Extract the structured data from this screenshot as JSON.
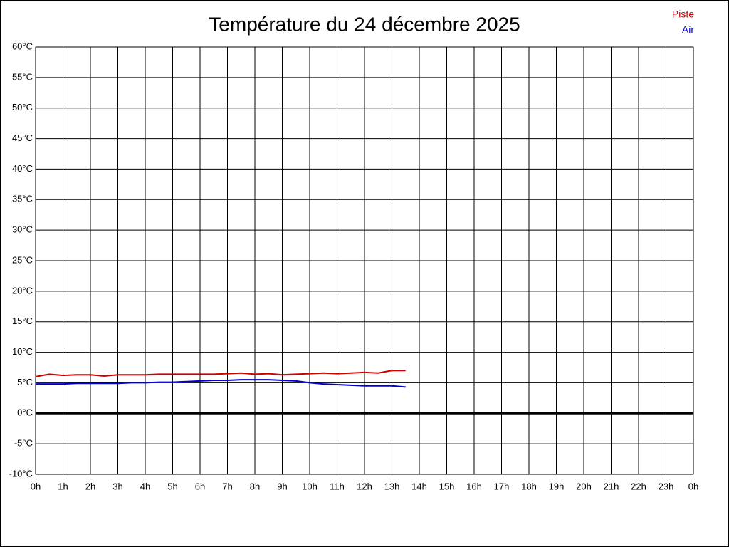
{
  "chart_data": {
    "type": "line",
    "title": "Température du 24 décembre 2025",
    "xlim": [
      0,
      24
    ],
    "xticks": [
      {
        "value": 0,
        "label": "0h"
      },
      {
        "value": 1,
        "label": "1h"
      },
      {
        "value": 2,
        "label": "2h"
      },
      {
        "value": 3,
        "label": "3h"
      },
      {
        "value": 4,
        "label": "4h"
      },
      {
        "value": 5,
        "label": "5h"
      },
      {
        "value": 6,
        "label": "6h"
      },
      {
        "value": 7,
        "label": "7h"
      },
      {
        "value": 8,
        "label": "8h"
      },
      {
        "value": 9,
        "label": "9h"
      },
      {
        "value": 10,
        "label": "10h"
      },
      {
        "value": 11,
        "label": "11h"
      },
      {
        "value": 12,
        "label": "12h"
      },
      {
        "value": 13,
        "label": "13h"
      },
      {
        "value": 14,
        "label": "14h"
      },
      {
        "value": 15,
        "label": "15h"
      },
      {
        "value": 16,
        "label": "16h"
      },
      {
        "value": 17,
        "label": "17h"
      },
      {
        "value": 18,
        "label": "18h"
      },
      {
        "value": 19,
        "label": "19h"
      },
      {
        "value": 20,
        "label": "20h"
      },
      {
        "value": 21,
        "label": "21h"
      },
      {
        "value": 22,
        "label": "22h"
      },
      {
        "value": 23,
        "label": "23h"
      },
      {
        "value": 24,
        "label": "0h"
      }
    ],
    "ylim": [
      -10,
      60
    ],
    "yticks": [
      {
        "value": -10,
        "label": "-10°C"
      },
      {
        "value": -5,
        "label": "-5°C"
      },
      {
        "value": 0,
        "label": "0°C"
      },
      {
        "value": 5,
        "label": "5°C"
      },
      {
        "value": 10,
        "label": "10°C"
      },
      {
        "value": 15,
        "label": "15°C"
      },
      {
        "value": 20,
        "label": "20°C"
      },
      {
        "value": 25,
        "label": "25°C"
      },
      {
        "value": 30,
        "label": "30°C"
      },
      {
        "value": 35,
        "label": "35°C"
      },
      {
        "value": 40,
        "label": "40°C"
      },
      {
        "value": 45,
        "label": "45°C"
      },
      {
        "value": 50,
        "label": "50°C"
      },
      {
        "value": 55,
        "label": "55°C"
      },
      {
        "value": 60,
        "label": "60°C"
      }
    ],
    "grid": true,
    "zero_line": true,
    "legend": "top-right",
    "x": [
      0,
      0.5,
      1,
      1.5,
      2,
      2.5,
      3,
      3.5,
      4,
      4.5,
      5,
      5.5,
      6,
      6.5,
      7,
      7.5,
      8,
      8.5,
      9,
      9.5,
      10,
      10.5,
      11,
      11.5,
      12,
      12.5,
      13,
      13.5
    ],
    "series": [
      {
        "name": "Piste",
        "color": "#cc0000",
        "values": [
          6.0,
          6.4,
          6.2,
          6.3,
          6.3,
          6.1,
          6.3,
          6.3,
          6.3,
          6.4,
          6.4,
          6.4,
          6.4,
          6.4,
          6.5,
          6.6,
          6.4,
          6.5,
          6.3,
          6.4,
          6.5,
          6.6,
          6.5,
          6.6,
          6.7,
          6.6,
          7.0,
          7.0
        ]
      },
      {
        "name": "Air",
        "color": "#0000cc",
        "values": [
          4.8,
          4.8,
          4.8,
          4.9,
          4.9,
          4.9,
          4.9,
          5.0,
          5.0,
          5.1,
          5.1,
          5.2,
          5.3,
          5.4,
          5.4,
          5.5,
          5.5,
          5.5,
          5.4,
          5.3,
          5.0,
          4.8,
          4.7,
          4.6,
          4.5,
          4.5,
          4.5,
          4.3
        ]
      }
    ]
  }
}
